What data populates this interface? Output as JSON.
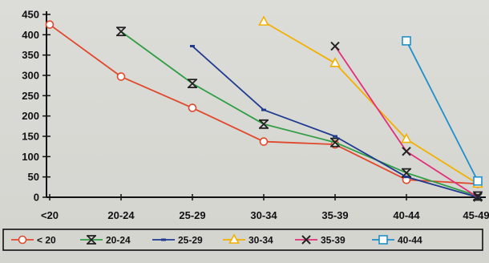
{
  "chart_data": {
    "type": "line",
    "title": "",
    "xlabel": "",
    "ylabel": "",
    "categories": [
      "<20",
      "20-24",
      "25-29",
      "30-34",
      "35-39",
      "40-44",
      "45-49"
    ],
    "ylim": [
      0,
      450
    ],
    "yticks": [
      0,
      50,
      100,
      150,
      200,
      250,
      300,
      350,
      400,
      450
    ],
    "grid": false,
    "legend_position": "bottom",
    "series": [
      {
        "name": "< 20",
        "marker": "circle",
        "color": "#e0482b",
        "values": [
          425,
          297,
          220,
          137,
          130,
          43,
          33
        ]
      },
      {
        "name": "20-24",
        "marker": "asterisk",
        "color": "#2f9e44",
        "values": [
          null,
          408,
          280,
          180,
          135,
          60,
          3
        ]
      },
      {
        "name": "25-29",
        "marker": "dash",
        "color": "#1f3a8f",
        "values": [
          null,
          null,
          372,
          215,
          150,
          50,
          0
        ]
      },
      {
        "name": "30-34",
        "marker": "triangle",
        "color": "#f2b000",
        "values": [
          null,
          null,
          null,
          432,
          330,
          143,
          33
        ]
      },
      {
        "name": "35-39",
        "marker": "x",
        "color": "#e0307a",
        "values": [
          null,
          null,
          null,
          null,
          372,
          113,
          0
        ]
      },
      {
        "name": "40-44",
        "marker": "square",
        "color": "#1f8fc9",
        "values": [
          null,
          null,
          null,
          null,
          null,
          385,
          40
        ]
      }
    ]
  }
}
